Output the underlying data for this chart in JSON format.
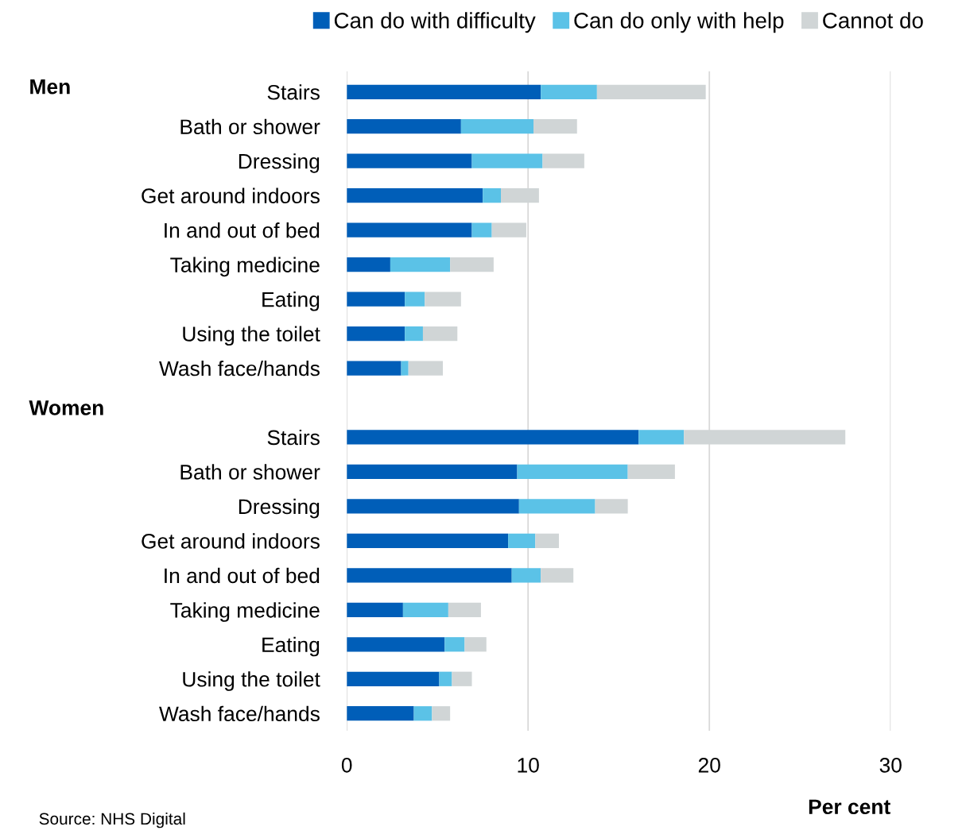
{
  "chart_data": {
    "type": "bar",
    "orientation": "horizontal",
    "stacked": true,
    "categories": [
      "Stairs",
      "Bath or shower",
      "Dressing",
      "Get around indoors",
      "In and out of bed",
      "Taking medicine",
      "Eating",
      "Using the toilet",
      "Wash face/hands",
      null,
      "Stairs",
      "Bath or shower",
      "Dressing",
      "Get around indoors",
      "In and out of bed",
      "Taking medicine",
      "Eating",
      "Using the toilet",
      "Wash face/hands"
    ],
    "series": [
      {
        "name": "Can do with difficulty",
        "color": "#005eb8",
        "values": [
          10.7,
          6.3,
          6.9,
          7.5,
          6.9,
          2.4,
          3.2,
          3.2,
          3.0,
          null,
          16.1,
          9.4,
          9.5,
          8.9,
          9.1,
          3.1,
          5.4,
          5.1,
          3.7
        ]
      },
      {
        "name": "Can do only with help",
        "color": "#5bc2e7",
        "values": [
          3.1,
          4.0,
          3.9,
          1.0,
          1.1,
          3.3,
          1.1,
          1.0,
          0.4,
          null,
          2.5,
          6.1,
          4.2,
          1.5,
          1.6,
          2.5,
          1.1,
          0.7,
          1.0
        ]
      },
      {
        "name": "Cannot do",
        "color": "#d0d5d6",
        "values": [
          6.0,
          2.4,
          2.3,
          2.1,
          1.9,
          2.4,
          2.0,
          1.9,
          1.9,
          null,
          8.9,
          2.6,
          1.8,
          1.3,
          1.8,
          1.8,
          1.2,
          1.1,
          1.0
        ]
      }
    ],
    "xlim": [
      0,
      30
    ],
    "xticks": [
      0,
      10,
      20,
      30
    ],
    "xlabel": "Per cent",
    "grid": "x",
    "legend": "top",
    "annotations": [
      "Men",
      "Women",
      "Source: NHS Digital"
    ]
  }
}
